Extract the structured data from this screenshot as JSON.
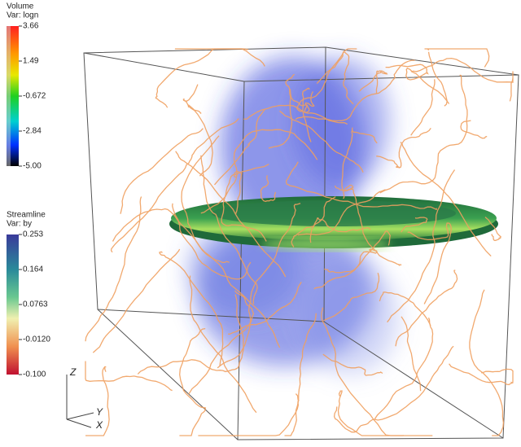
{
  "volume_legend": {
    "title": "Volume",
    "variable": "Var: logn",
    "ticks": [
      "3.66",
      "1.49",
      "-0.672",
      "-2.84",
      "-5.00"
    ]
  },
  "streamline_legend": {
    "title": "Streamline",
    "variable": "Var: by",
    "ticks": [
      "0.253",
      "0.164",
      "0.0763",
      "-0.0120",
      "-0.100"
    ]
  },
  "axes": {
    "z": "Z",
    "y": "Y",
    "x": "X"
  }
}
